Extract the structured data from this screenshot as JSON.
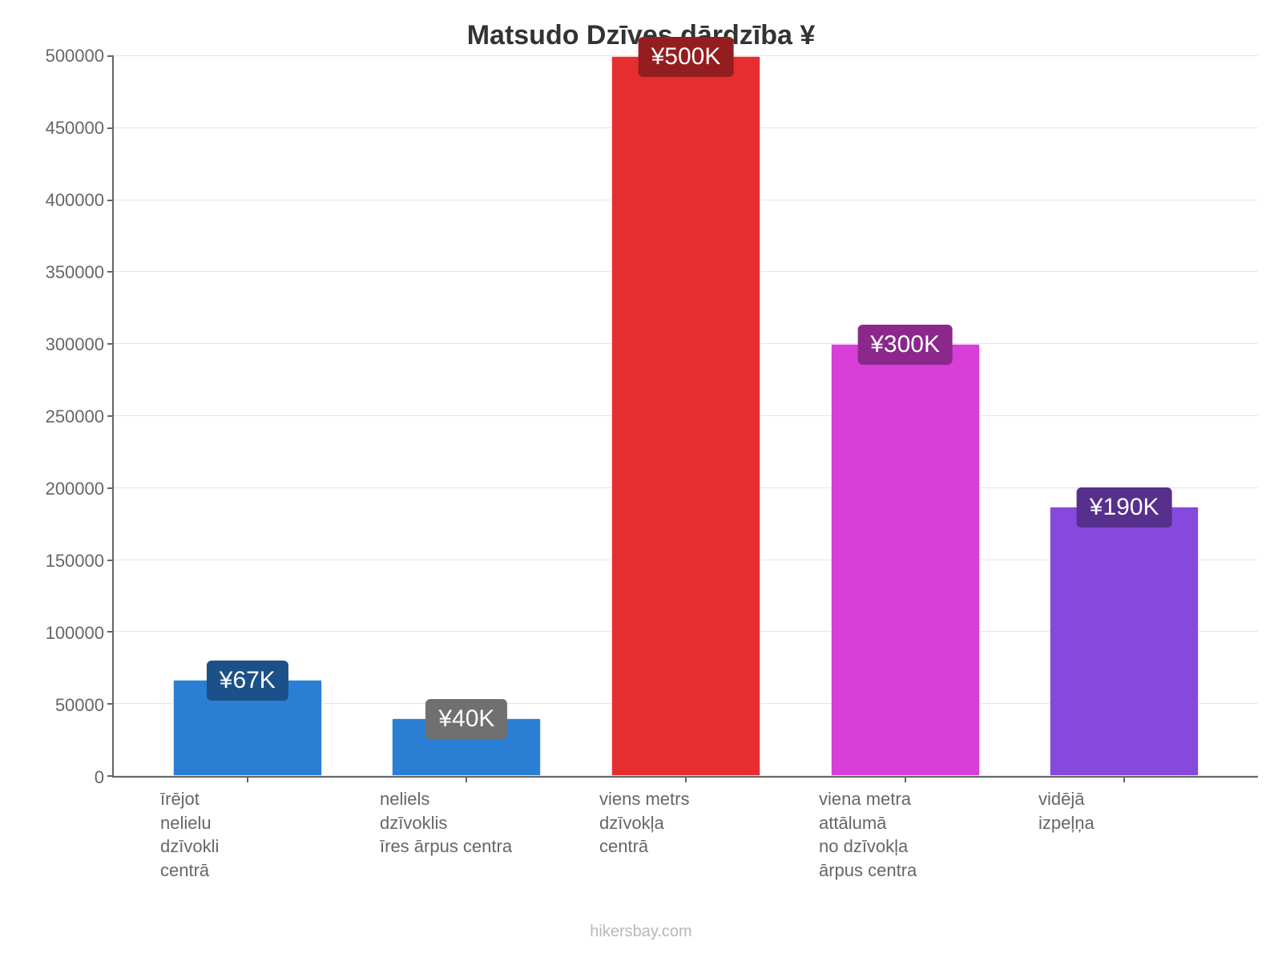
{
  "chart": {
    "type": "bar",
    "title": "Matsudo Dzīves dārdzība ¥",
    "title_fontsize": 34,
    "title_color": "#333333",
    "background_color": "#ffffff",
    "axis_color": "#666666",
    "grid_color": "#e6e6e6",
    "label_color": "#666666",
    "label_fontsize": 22,
    "ylim_min": 0,
    "ylim_max": 500000,
    "ytick_step": 50000,
    "yticks": [
      "0",
      "50000",
      "100000",
      "150000",
      "200000",
      "250000",
      "300000",
      "350000",
      "400000",
      "450000",
      "500000"
    ],
    "bar_width_pct": 68,
    "value_badge_fontsize": 30,
    "bars": [
      {
        "category": "īrējot\nnelielu\ndzīvokli\ncentrā",
        "value": 67000,
        "value_label": "¥67K",
        "bar_color": "#2a7fd4",
        "badge_bg": "#1b5188"
      },
      {
        "category": "neliels\ndzīvoklis\nīres ārpus centra",
        "value": 40000,
        "value_label": "¥40K",
        "bar_color": "#2a7fd4",
        "badge_bg": "#707070"
      },
      {
        "category": "viens metrs dzīvokļa\ncentrā",
        "value": 500000,
        "value_label": "¥500K",
        "bar_color": "#e62e31",
        "badge_bg": "#941e1f"
      },
      {
        "category": "viena metra attālumā\nno dzīvokļa\nārpus centra",
        "value": 300000,
        "value_label": "¥300K",
        "bar_color": "#d83ed8",
        "badge_bg": "#8b288b"
      },
      {
        "category": "vidējā\nizpeļņa",
        "value": 187000,
        "value_label": "¥190K",
        "bar_color": "#8549dc",
        "badge_bg": "#572f8c"
      }
    ],
    "attribution": "hikersbay.com",
    "attribution_color": "#b7b7b7",
    "attribution_fontsize": 20
  }
}
